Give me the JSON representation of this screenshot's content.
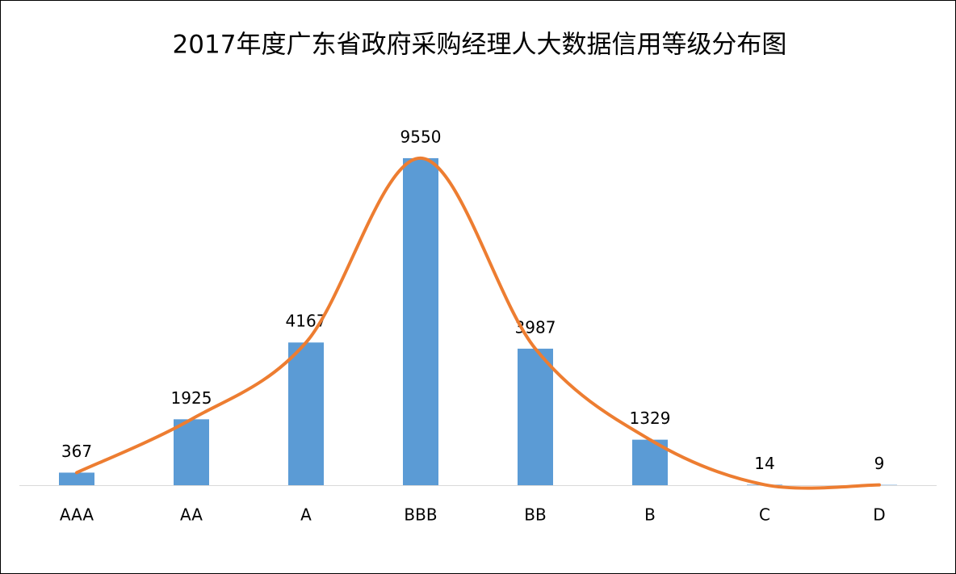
{
  "chart_data": {
    "type": "bar",
    "title": "2017年度广东省政府采购经理人大数据信用等级分布图",
    "categories": [
      "AAA",
      "AA",
      "A",
      "BBB",
      "BB",
      "B",
      "C",
      "D"
    ],
    "series": [
      {
        "type": "bar",
        "color": "#5b9bd5",
        "values": [
          367,
          1925,
          4167,
          9550,
          3987,
          1329,
          14,
          9
        ]
      },
      {
        "type": "line",
        "color": "#ed7d31",
        "values": [
          367,
          1925,
          4167,
          9550,
          3987,
          1329,
          14,
          9
        ]
      }
    ],
    "ylim": [
      0,
      12000
    ]
  }
}
